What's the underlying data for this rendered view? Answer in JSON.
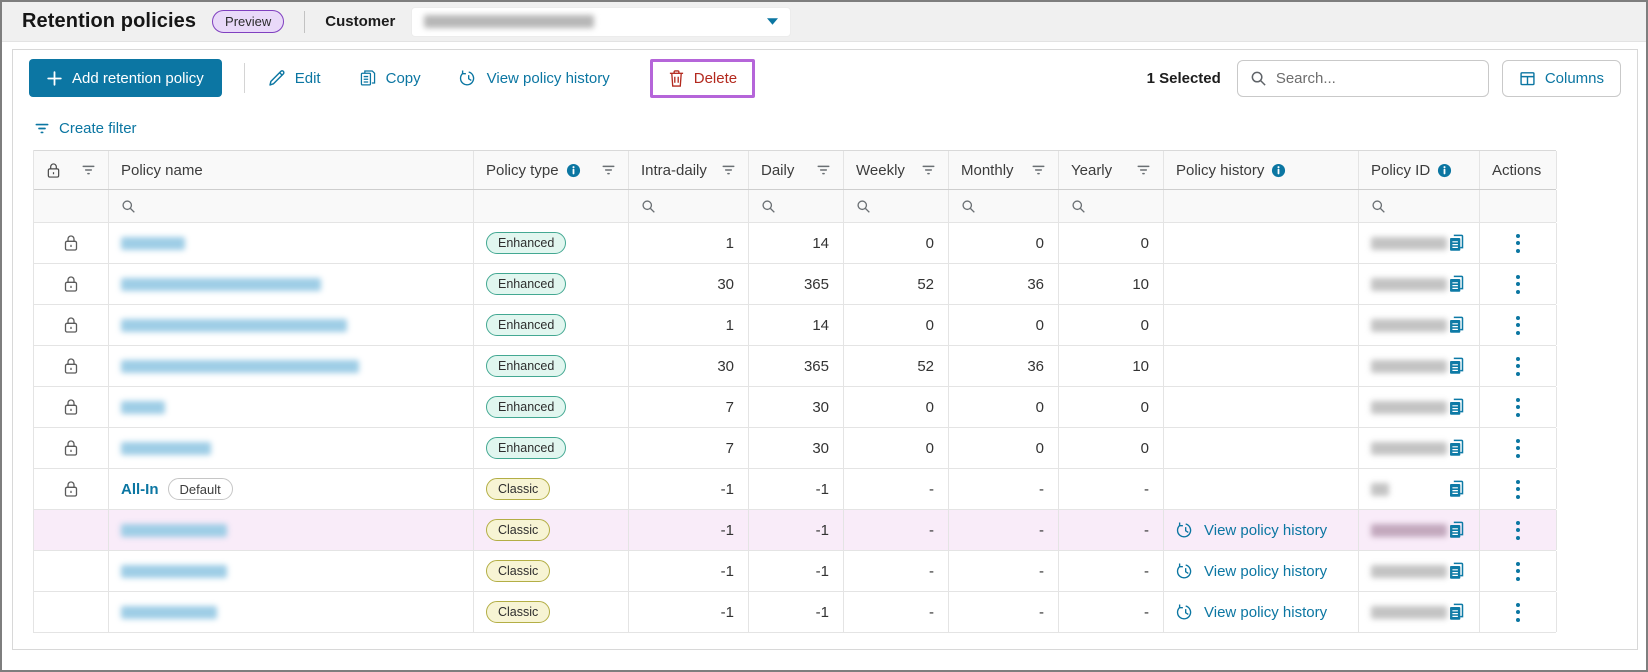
{
  "page": {
    "title": "Retention policies",
    "preview_badge": "Preview",
    "customer_label": "Customer",
    "customer_value_redacted": true
  },
  "toolbar": {
    "add_button": "Add retention policy",
    "edit": "Edit",
    "copy": "Copy",
    "view_policy_history": "View policy history",
    "delete": "Delete",
    "delete_is_highlighted": true,
    "selected_count": "1 Selected",
    "search_placeholder": "Search...",
    "columns_button": "Columns"
  },
  "filter_bar": {
    "create_filter": "Create filter"
  },
  "table": {
    "history_link_label": "View policy history",
    "columns": [
      {
        "key": "lock",
        "label": "",
        "has_filter": true,
        "has_info": false,
        "has_search": false
      },
      {
        "key": "name",
        "label": "Policy name",
        "has_filter": false,
        "has_info": false,
        "has_search": true
      },
      {
        "key": "type",
        "label": "Policy type",
        "has_filter": true,
        "has_info": true,
        "has_search": false
      },
      {
        "key": "intra_daily",
        "label": "Intra-daily",
        "has_filter": true,
        "has_info": false,
        "has_search": true,
        "align": "right"
      },
      {
        "key": "daily",
        "label": "Daily",
        "has_filter": true,
        "has_info": false,
        "has_search": true,
        "align": "right"
      },
      {
        "key": "weekly",
        "label": "Weekly",
        "has_filter": true,
        "has_info": false,
        "has_search": true,
        "align": "right"
      },
      {
        "key": "monthly",
        "label": "Monthly",
        "has_filter": true,
        "has_info": false,
        "has_search": true,
        "align": "right"
      },
      {
        "key": "yearly",
        "label": "Yearly",
        "has_filter": true,
        "has_info": false,
        "has_search": true,
        "align": "right"
      },
      {
        "key": "history",
        "label": "Policy history",
        "has_filter": false,
        "has_info": true,
        "has_search": false
      },
      {
        "key": "id",
        "label": "Policy ID",
        "has_filter": false,
        "has_info": true,
        "has_search": true
      },
      {
        "key": "actions",
        "label": "Actions",
        "has_filter": false,
        "has_info": false,
        "has_search": false
      }
    ],
    "rows": [
      {
        "locked": true,
        "name": null,
        "name_blur_w": 64,
        "has_default_badge": false,
        "type": "Enhanced",
        "intra_daily": "1",
        "daily": "14",
        "weekly": "0",
        "monthly": "0",
        "yearly": "0",
        "has_history_link": false,
        "id_blur_w": 92,
        "selected": false
      },
      {
        "locked": true,
        "name": null,
        "name_blur_w": 200,
        "has_default_badge": false,
        "type": "Enhanced",
        "intra_daily": "30",
        "daily": "365",
        "weekly": "52",
        "monthly": "36",
        "yearly": "10",
        "has_history_link": false,
        "id_blur_w": 92,
        "selected": false
      },
      {
        "locked": true,
        "name": null,
        "name_blur_w": 226,
        "has_default_badge": false,
        "type": "Enhanced",
        "intra_daily": "1",
        "daily": "14",
        "weekly": "0",
        "monthly": "0",
        "yearly": "0",
        "has_history_link": false,
        "id_blur_w": 80,
        "selected": false
      },
      {
        "locked": true,
        "name": null,
        "name_blur_w": 238,
        "has_default_badge": false,
        "type": "Enhanced",
        "intra_daily": "30",
        "daily": "365",
        "weekly": "52",
        "monthly": "36",
        "yearly": "10",
        "has_history_link": false,
        "id_blur_w": 92,
        "selected": false
      },
      {
        "locked": true,
        "name": null,
        "name_blur_w": 44,
        "has_default_badge": false,
        "type": "Enhanced",
        "intra_daily": "7",
        "daily": "30",
        "weekly": "0",
        "monthly": "0",
        "yearly": "0",
        "has_history_link": false,
        "id_blur_w": 92,
        "selected": false
      },
      {
        "locked": true,
        "name": null,
        "name_blur_w": 90,
        "has_default_badge": false,
        "type": "Enhanced",
        "intra_daily": "7",
        "daily": "30",
        "weekly": "0",
        "monthly": "0",
        "yearly": "0",
        "has_history_link": false,
        "id_blur_w": 80,
        "selected": false
      },
      {
        "locked": true,
        "name": "All-In",
        "name_blur_w": 0,
        "has_default_badge": true,
        "type": "Classic",
        "intra_daily": "-1",
        "daily": "-1",
        "weekly": "-",
        "monthly": "-",
        "yearly": "-",
        "has_history_link": false,
        "id_blur_w": 18,
        "selected": false
      },
      {
        "locked": false,
        "name": null,
        "name_blur_w": 106,
        "has_default_badge": false,
        "type": "Classic",
        "intra_daily": "-1",
        "daily": "-1",
        "weekly": "-",
        "monthly": "-",
        "yearly": "-",
        "has_history_link": true,
        "id_blur_w": 76,
        "selected": true
      },
      {
        "locked": false,
        "name": null,
        "name_blur_w": 106,
        "has_default_badge": false,
        "type": "Classic",
        "intra_daily": "-1",
        "daily": "-1",
        "weekly": "-",
        "monthly": "-",
        "yearly": "-",
        "has_history_link": true,
        "id_blur_w": 76,
        "selected": false
      },
      {
        "locked": false,
        "name": null,
        "name_blur_w": 96,
        "has_default_badge": false,
        "type": "Classic",
        "intra_daily": "-1",
        "daily": "-1",
        "weekly": "-",
        "monthly": "-",
        "yearly": "-",
        "has_history_link": true,
        "id_blur_w": 76,
        "selected": false
      }
    ],
    "badges": {
      "enhanced": "Enhanced",
      "classic": "Classic",
      "default": "Default"
    }
  },
  "colors": {
    "primary": "#0b76a2",
    "danger": "#b3291e",
    "highlight_border": "#b565d9",
    "selected_row_bg": "#f9ecf9",
    "enhanced_badge_bg": "#e1f6ef",
    "enhanced_badge_border": "#43a892",
    "classic_badge_bg": "#f7f4d4",
    "classic_badge_border": "#b3ae45",
    "preview_badge_bg": "#e9d9f9",
    "preview_badge_border": "#8040c0"
  }
}
